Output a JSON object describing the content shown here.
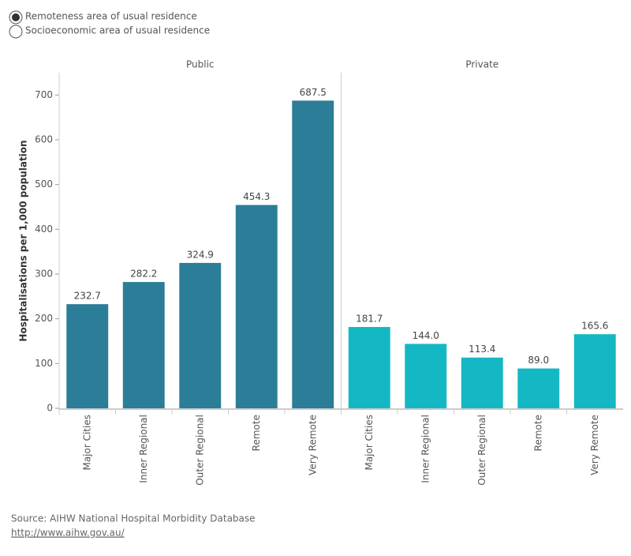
{
  "chart_data": {
    "type": "bar",
    "y_label": "Hospitalisations per 1,000 population",
    "categories": [
      "Major Cities",
      "Inner Regional",
      "Outer Regional",
      "Remote",
      "Very Remote"
    ],
    "panels": [
      {
        "title": "Public",
        "color": "#2b7d98",
        "values": [
          232.7,
          282.2,
          324.9,
          454.3,
          687.5
        ],
        "value_labels": [
          "232.7",
          "282.2",
          "324.9",
          "454.3",
          "687.5"
        ]
      },
      {
        "title": "Private",
        "color": "#14b8c4",
        "values": [
          181.7,
          144.0,
          113.4,
          89.0,
          165.6
        ],
        "value_labels": [
          "181.7",
          "144.0",
          "113.4",
          "89.0",
          "165.6"
        ]
      }
    ],
    "ylim": [
      0,
      750
    ],
    "yticks": [
      0,
      100,
      200,
      300,
      400,
      500,
      600,
      700
    ]
  },
  "controls": {
    "options": [
      "Remoteness area of usual residence",
      "Socioeconomic area of usual residence"
    ],
    "selected": 0
  },
  "source": "Source: AIHW National Hospital Morbidity Database",
  "link": "http://www.aihw.gov.au/"
}
